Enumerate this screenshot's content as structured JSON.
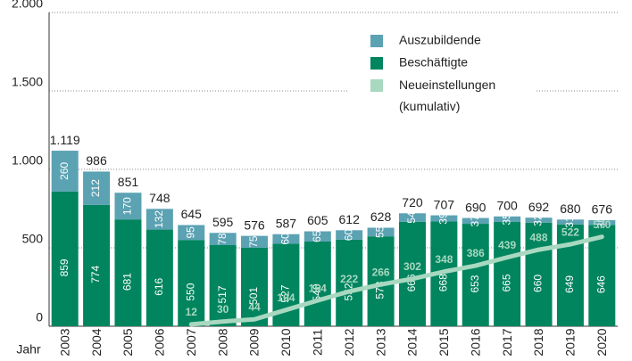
{
  "chart_data": {
    "type": "bar",
    "stacked": true,
    "x_label": "Jahr",
    "categories": [
      "2003",
      "2004",
      "2005",
      "2006",
      "2007",
      "2008",
      "2009",
      "2010",
      "2011",
      "2012",
      "2013",
      "2014",
      "2015",
      "2016",
      "2017",
      "2018",
      "2019",
      "2020"
    ],
    "series": [
      {
        "name": "Beschäftigte",
        "color": "#00855f",
        "values": [
          859,
          774,
          681,
          616,
          550,
          517,
          501,
          527,
          540,
          552,
          573,
          666,
          668,
          653,
          665,
          660,
          649,
          646
        ]
      },
      {
        "name": "Auszubildende",
        "color": "#5ba2b3",
        "values": [
          260,
          212,
          170,
          132,
          95,
          78,
          75,
          60,
          65,
          60,
          55,
          54,
          39,
          37,
          35,
          32,
          31,
          30
        ]
      },
      {
        "name": "Neueinstellungen (kumulativ)",
        "color": "#a8d8c0",
        "type": "line",
        "values": [
          null,
          null,
          null,
          null,
          12,
          30,
          44,
          104,
          164,
          222,
          266,
          302,
          348,
          386,
          439,
          488,
          522,
          570
        ]
      }
    ],
    "totals": {
      "values": [
        1119,
        986,
        851,
        748,
        645,
        595,
        576,
        587,
        605,
        612,
        628,
        720,
        707,
        690,
        700,
        692,
        680,
        676
      ],
      "value_labels": [
        "1.119",
        "986",
        "851",
        "748",
        "645",
        "595",
        "576",
        "587",
        "605",
        "612",
        "628",
        "720",
        "707",
        "690",
        "700",
        "692",
        "680",
        "676"
      ]
    },
    "ylim": [
      0,
      2000
    ],
    "yticks": [
      0,
      500,
      {
        "value": 1000,
        "label": "1.000"
      },
      {
        "value": 1500,
        "label": "1.500"
      },
      {
        "value": 2000,
        "label": "2.000"
      }
    ],
    "grid": true,
    "legend": "upper right"
  }
}
